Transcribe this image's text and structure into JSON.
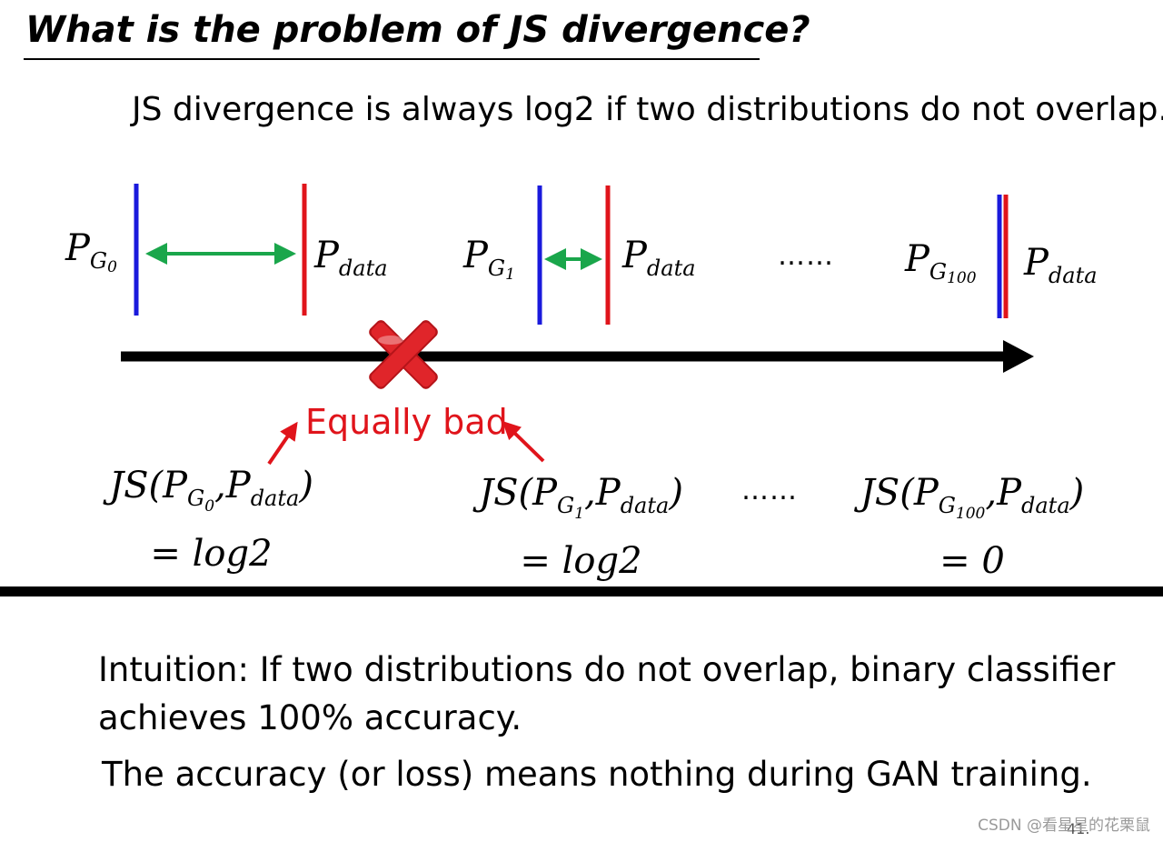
{
  "slide": {
    "title": "What is the problem of JS divergence?",
    "subtitle": "JS divergence is always log2 if two distributions do not overlap.",
    "labels": {
      "p": "P",
      "g": "G",
      "g0_sub": "0",
      "g1_sub": "1",
      "g100_sub": "100",
      "data_sub": "data"
    },
    "ellipsis": "……",
    "equally_bad": "Equally bad",
    "js": {
      "prefix": "JS",
      "open": "(",
      "close": ")",
      "comma": ",",
      "eq_g0": "= log2",
      "eq_g1": "= log2",
      "eq_g100": "= 0"
    },
    "intuition_line1": "Intuition: If two distributions do not overlap, binary classifier",
    "intuition_line2": "achieves 100% accuracy.",
    "conclusion": "The accuracy (or loss) means nothing during GAN training.",
    "page_number": "41.",
    "watermark": "CSDN @看星星的花栗鼠"
  },
  "colors": {
    "generator_line": "#1a1adc",
    "data_line": "#e0141b",
    "distance_arrow": "#1aa64b",
    "axis": "#000000",
    "cross": "#d91e23",
    "equally_bad": "#e0141b"
  },
  "icons": {
    "cross": "red-x-cross-icon"
  }
}
